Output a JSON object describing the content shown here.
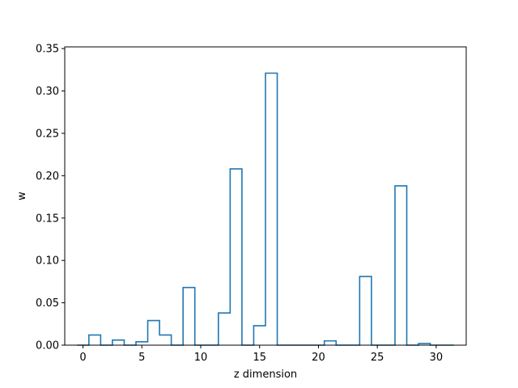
{
  "chart_data": {
    "type": "step",
    "xlabel": "z dimension",
    "ylabel": "w",
    "xlim": [
      -1.55,
      32.55
    ],
    "ylim": [
      0,
      0.352
    ],
    "xticks": [
      0,
      5,
      10,
      15,
      20,
      25,
      30
    ],
    "yticks": [
      "0.00",
      "0.05",
      "0.10",
      "0.15",
      "0.20",
      "0.25",
      "0.30",
      "0.35"
    ],
    "grid": false,
    "series": [
      {
        "color": "#1f77b4",
        "x": [
          0,
          1,
          2,
          3,
          4,
          5,
          6,
          7,
          8,
          9,
          10,
          11,
          12,
          13,
          14,
          15,
          16,
          17,
          18,
          19,
          20,
          21,
          22,
          23,
          24,
          25,
          26,
          27,
          28,
          29,
          30,
          31
        ],
        "values": [
          0.0,
          0.012,
          0.0,
          0.006,
          0.0,
          0.004,
          0.029,
          0.012,
          0.0,
          0.068,
          0.0,
          0.0,
          0.038,
          0.208,
          0.0,
          0.023,
          0.321,
          0.0,
          0.0,
          0.0,
          0.0,
          0.005,
          0.0,
          0.0,
          0.081,
          0.0,
          0.0,
          0.188,
          0.0,
          0.002,
          0.0,
          0.0
        ]
      }
    ]
  }
}
